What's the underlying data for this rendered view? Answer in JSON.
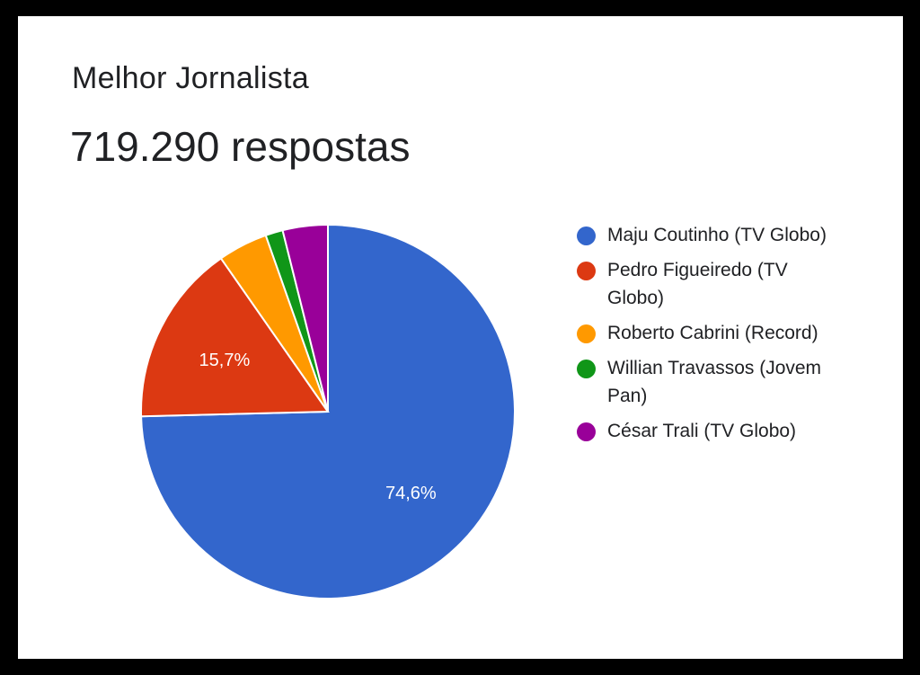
{
  "title": "Melhor Jornalista",
  "subtitle": "719.290 respostas",
  "chart_data": {
    "type": "pie",
    "title": "Melhor Jornalista",
    "subtitle": "719.290 respostas",
    "legend_position": "right",
    "slices": [
      {
        "label": "Maju Coutinho (TV Globo)",
        "value": 74.6,
        "display": "74,6%",
        "color": "#3366cc"
      },
      {
        "label": "Pedro Figueiredo (TV Globo)",
        "value": 15.7,
        "display": "15,7%",
        "color": "#dc3912"
      },
      {
        "label": "Roberto Cabrini (Record)",
        "value": 4.3,
        "display": "",
        "color": "#ff9900"
      },
      {
        "label": "Willian Travassos (Jovem Pan)",
        "value": 1.5,
        "display": "",
        "color": "#109618"
      },
      {
        "label": "César Trali (TV Globo)",
        "value": 3.9,
        "display": "",
        "color": "#990099"
      }
    ]
  }
}
